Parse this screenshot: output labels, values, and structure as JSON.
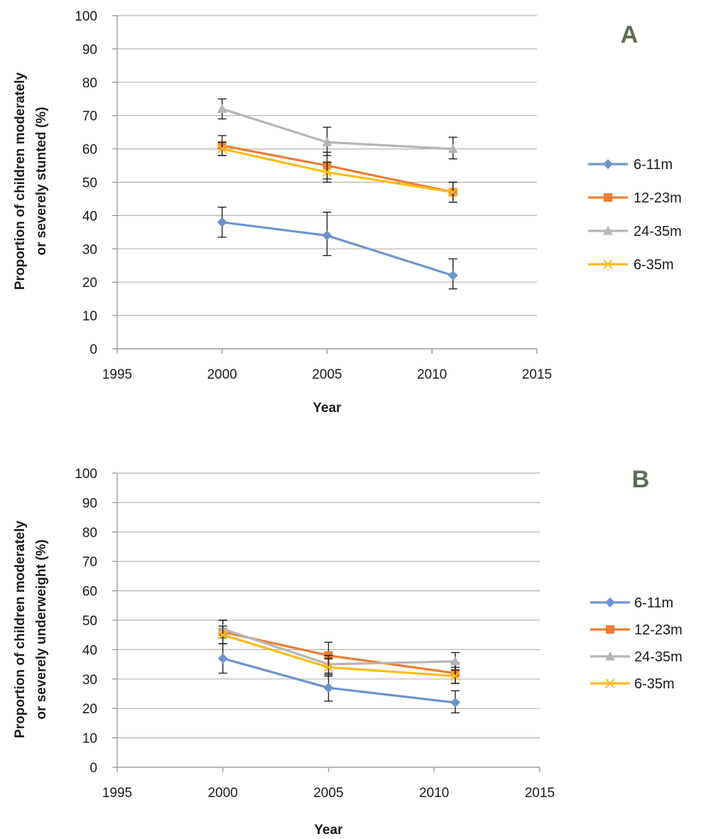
{
  "chart_data": [
    {
      "panel": "A",
      "type": "line",
      "title": "",
      "xlabel": "Year",
      "ylabel_lines": [
        "Proportion of children moderately",
        "or severely  stunted (%)"
      ],
      "xlim": [
        1995,
        2015
      ],
      "ylim": [
        0,
        100
      ],
      "xticks": [
        1995,
        2000,
        2005,
        2010,
        2015
      ],
      "yticks": [
        0,
        10,
        20,
        30,
        40,
        50,
        60,
        70,
        80,
        90,
        100
      ],
      "grid": true,
      "legend_position": "right",
      "x": [
        2000,
        2005,
        2011
      ],
      "series": [
        {
          "name": "6-11m",
          "color": "#6c93cf",
          "marker": "diamond",
          "values": [
            38,
            34,
            22
          ],
          "err_low": [
            33.5,
            28,
            18
          ],
          "err_high": [
            42.5,
            41,
            27
          ]
        },
        {
          "name": "12-23m",
          "color": "#ed7d31",
          "marker": "square",
          "values": [
            61,
            55,
            47
          ],
          "err_low": [
            58,
            51,
            44
          ],
          "err_high": [
            64,
            59,
            50
          ]
        },
        {
          "name": "24-35m",
          "color": "#b5b5b5",
          "marker": "triangle",
          "values": [
            72,
            62,
            60
          ],
          "err_low": [
            69,
            58,
            57
          ],
          "err_high": [
            75,
            66.5,
            63.5
          ]
        },
        {
          "name": "6-35m",
          "color": "#fbbc19",
          "marker": "x",
          "values": [
            60,
            53,
            47
          ],
          "err_low": [
            58,
            50,
            44
          ],
          "err_high": [
            62,
            56,
            50
          ]
        }
      ]
    },
    {
      "panel": "B",
      "type": "line",
      "title": "",
      "xlabel": "Year",
      "ylabel_lines": [
        "Proportion of children moderately",
        "or severely underweight (%)"
      ],
      "xlim": [
        1995,
        2015
      ],
      "ylim": [
        0,
        100
      ],
      "xticks": [
        1995,
        2000,
        2005,
        2010,
        2015
      ],
      "yticks": [
        0,
        10,
        20,
        30,
        40,
        50,
        60,
        70,
        80,
        90,
        100
      ],
      "grid": true,
      "legend_position": "right",
      "x": [
        2000,
        2005,
        2011
      ],
      "series": [
        {
          "name": "6-11m",
          "color": "#6c93cf",
          "marker": "diamond",
          "values": [
            37,
            27,
            22
          ],
          "err_low": [
            32,
            22.5,
            18.5
          ],
          "err_high": [
            42,
            31.5,
            26
          ]
        },
        {
          "name": "12-23m",
          "color": "#ed7d31",
          "marker": "square",
          "values": [
            46,
            38,
            32
          ],
          "err_low": [
            42,
            34,
            28.5
          ],
          "err_high": [
            50,
            42.5,
            35.5
          ]
        },
        {
          "name": "24-35m",
          "color": "#b5b5b5",
          "marker": "triangle",
          "values": [
            47,
            35,
            36
          ],
          "err_low": [
            44,
            32,
            33
          ],
          "err_high": [
            50,
            38,
            39
          ]
        },
        {
          "name": "6-35m",
          "color": "#fbbc19",
          "marker": "x",
          "values": [
            45,
            34,
            31
          ],
          "err_low": [
            42,
            31,
            28.5
          ],
          "err_high": [
            48,
            37,
            34
          ]
        }
      ]
    }
  ]
}
